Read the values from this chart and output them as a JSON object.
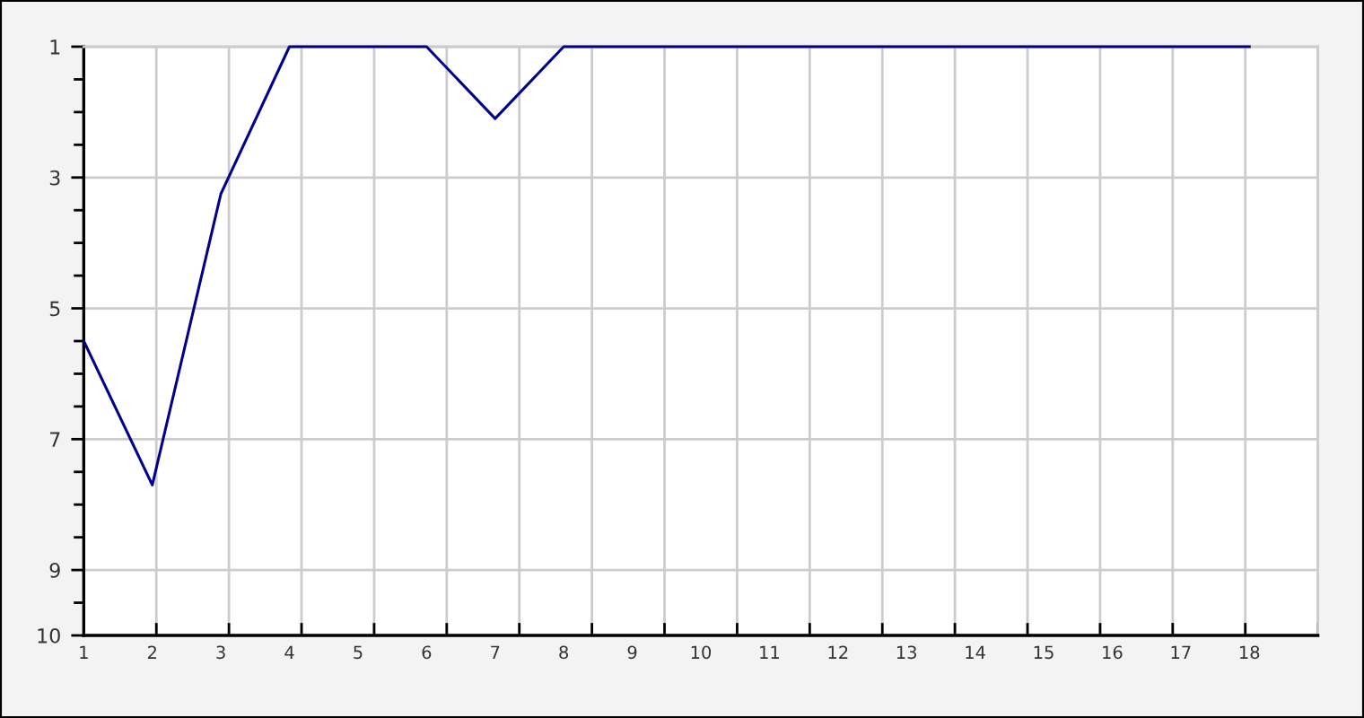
{
  "chart_data": {
    "type": "line",
    "categories": [
      "1",
      "2",
      "3",
      "4",
      "5",
      "6",
      "7",
      "8",
      "9",
      "10",
      "11",
      "12",
      "13",
      "14",
      "15",
      "16",
      "17",
      "18"
    ],
    "values": [
      5.5,
      7.7,
      3.25,
      1,
      1,
      1,
      2.1,
      1,
      1,
      1,
      1,
      1,
      1,
      1,
      1,
      1,
      1,
      1
    ],
    "color": "#00008b",
    "ylim": [
      10,
      1
    ],
    "yticks": [
      1,
      {
        "value": 1.5,
        "label": null
      },
      {
        "value": 2,
        "label": null
      },
      {
        "value": 2.5,
        "label": null
      },
      3,
      {
        "value": 3.5,
        "label": null
      },
      {
        "value": 4,
        "label": null
      },
      {
        "value": 4.5,
        "label": null
      },
      5,
      {
        "value": 5.5,
        "label": null
      },
      {
        "value": 6,
        "label": null
      },
      {
        "value": 6.5,
        "label": null
      },
      7,
      {
        "value": 7.5,
        "label": null
      },
      {
        "value": 8,
        "label": null
      },
      {
        "value": 8.5,
        "label": null
      },
      9,
      {
        "value": 9.5,
        "label": null
      },
      10
    ],
    "grid": true
  }
}
